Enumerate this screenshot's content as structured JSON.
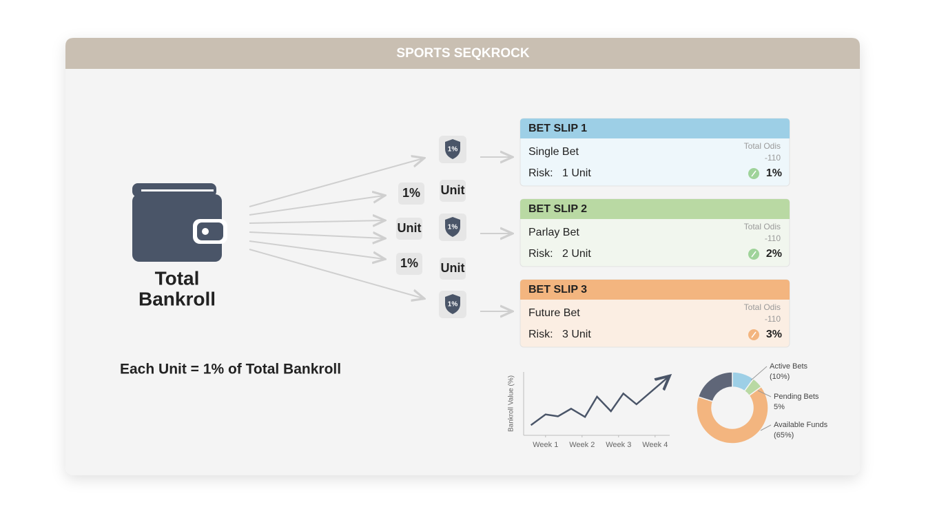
{
  "header": {
    "title": "SPORTS SEQKROCK"
  },
  "wallet": {
    "label_line1": "Total",
    "label_line2": "Bankroll"
  },
  "shield_badges": [
    "1%",
    "1%",
    "1%"
  ],
  "chips": [
    "1%",
    "Unit",
    "Unit",
    "1%",
    "Unit"
  ],
  "bet_slips": [
    {
      "title": "BET SLIP 1",
      "bet_type": "Single Bet",
      "odds_label": "Total Odis",
      "odds": "-110",
      "risk_label": "Risk:",
      "risk": "1 Unit",
      "percent": "1%"
    },
    {
      "title": "BET SLIP 2",
      "bet_type": "Parlay Bet",
      "odds_label": "Total Odis",
      "odds": "-110",
      "risk_label": "Risk:",
      "risk": "2 Unit",
      "percent": "2%"
    },
    {
      "title": "BET SLIP 3",
      "bet_type": "Future Bet",
      "odds_label": "Total Odis",
      "odds": "-110",
      "risk_label": "Risk:",
      "risk": "3 Unit",
      "percent": "3%"
    }
  ],
  "footnote": "Each Unit = 1% of Total Bankroll",
  "chart_data": [
    {
      "type": "line",
      "y_label": "Bankroll Value (%)",
      "x": [
        0.6,
        1,
        1.34,
        1.7,
        2.08,
        2.41,
        2.79,
        3.13,
        3.49,
        4.36
      ],
      "xlim": [
        0.4,
        4.4
      ],
      "xticks": [
        {
          "value": 1,
          "label": "Week 1"
        },
        {
          "value": 2,
          "label": "Week 2"
        },
        {
          "value": 3,
          "label": "Week 3"
        },
        {
          "value": 4,
          "label": "Week 4"
        }
      ],
      "ylim": [
        0,
        100
      ],
      "series": [
        {
          "color": "#4a5568",
          "values": [
            16,
            33,
            30,
            42,
            29,
            61,
            38,
            66,
            49,
            92
          ]
        }
      ]
    },
    {
      "type": "pie",
      "categories": [
        "Active Bets",
        "Pending Bets",
        "Available Funds",
        null
      ],
      "values": [
        10,
        5,
        65,
        20
      ],
      "value_labels": [
        "(10%)",
        "5%",
        "(65%)",
        null
      ],
      "colors": [
        "#9dcfe6",
        "#b9d9a3",
        "#f3b57f",
        "#5f6678"
      ]
    }
  ]
}
